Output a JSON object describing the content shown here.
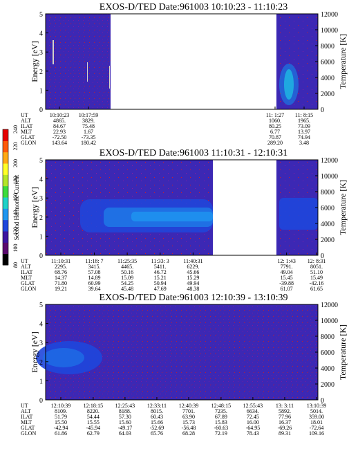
{
  "chart_data": [
    {
      "type": "heatmap",
      "title": "EXOS-D/TED   Date:961003  10:10:23 - 11:10:23",
      "ylabel": "Energy [eV]",
      "ylim": [
        0,
        5
      ],
      "yticks": [
        "0",
        "1",
        "2",
        "3",
        "4",
        "5"
      ],
      "y2label": "Temperature [K]",
      "y2lim": [
        0,
        12000
      ],
      "y2ticks": [
        "0",
        "2000",
        "4000",
        "6000",
        "8000",
        "10000",
        "12000"
      ],
      "grid": false,
      "segments": [
        {
          "start": "10:10:23",
          "end": "10:24:00",
          "band_center_ev": null,
          "intensity": "low"
        },
        {
          "start": "10:24:00",
          "end": "11:01:00",
          "data": "gap"
        },
        {
          "start": "11:01:00",
          "end": "11:10:23",
          "band_center_ev": 1.2,
          "intensity": "high"
        }
      ],
      "table": {
        "row_labels": [
          "UT",
          "ALT",
          "ILAT",
          "MLT",
          "GLAT",
          "GLON"
        ],
        "columns": [
          [
            "10:10:23",
            "4865.",
            "84.67",
            "22.93",
            "-72.50",
            "143.64"
          ],
          [
            "10:17:59",
            "3829.",
            "75.48",
            "1.67",
            "-73.35",
            "180.42"
          ],
          [
            "11: 1:27",
            "1060.",
            "80.25",
            "6.77",
            "70.87",
            "289.20"
          ],
          [
            "11: 8:15",
            "1965.",
            "73.09",
            "13.97",
            "74.94",
            "3.48"
          ]
        ]
      }
    },
    {
      "type": "heatmap",
      "title": "EXOS-D/TED   Date:961003  11:10:31 - 12:10:31",
      "ylabel": "Energy [eV]",
      "ylim": [
        0,
        5
      ],
      "yticks": [
        "0",
        "1",
        "2",
        "3",
        "4",
        "5"
      ],
      "y2label": "Temperature [K]",
      "y2lim": [
        0,
        12000
      ],
      "y2ticks": [
        "0",
        "2000",
        "4000",
        "6000",
        "8000",
        "10000",
        "12000"
      ],
      "grid": false,
      "segments": [
        {
          "start": "11:10:31",
          "end": "11:16:00",
          "band_center_ev": null,
          "intensity": "low"
        },
        {
          "start": "11:16:00",
          "end": "11:43:00",
          "band_center_ev": 1.9,
          "intensity": "high"
        },
        {
          "start": "11:43:00",
          "end": "12: 1:43",
          "data": "gap"
        },
        {
          "start": "12: 1:43",
          "end": "12:10:31",
          "band_center_ev": 2.0,
          "intensity": "medium"
        }
      ],
      "colorbar": {
        "label": "Second Harmonic Current",
        "ticks": [
          "80",
          "100",
          "120",
          "140",
          "160",
          "180",
          "200",
          "220",
          "240"
        ],
        "colors": [
          "#000000",
          "#5a0a6e",
          "#3c14a0",
          "#1e46dc",
          "#1e96f0",
          "#1ed2c8",
          "#3cdc3c",
          "#b4e628",
          "#ffff28",
          "#ffaa14",
          "#ff5a0a",
          "#e60000"
        ]
      },
      "table": {
        "row_labels": [
          "UT",
          "ALT",
          "ILAT",
          "MLT",
          "GLAT",
          "GLON"
        ],
        "columns": [
          [
            "11:10:31",
            "2295.",
            "68.76",
            "14.37",
            "71.80",
            "19.21"
          ],
          [
            "11:18: 7",
            "3415.",
            "57.08",
            "14.89",
            "60.99",
            "39.64"
          ],
          [
            "11:25:35",
            "4465.",
            "50.16",
            "15.09",
            "54.25",
            "45.48"
          ],
          [
            "11:33: 3",
            "5411.",
            "46.72",
            "15.21",
            "50.94",
            "47.69"
          ],
          [
            "11:40:31",
            "6229.",
            "45.66",
            "15.29",
            "49.94",
            "48.38"
          ],
          [
            "12: 1:43",
            "7791.",
            "49.04",
            "15.45",
            "-39.88",
            "61.07"
          ],
          [
            "12: 8:31",
            "8051.",
            "51.10",
            "15.49",
            "-42.16",
            "61.65"
          ]
        ]
      }
    },
    {
      "type": "heatmap",
      "title": "EXOS-D/TED   Date:961003  12:10:39 - 13:10:39",
      "ylabel": "Energy [eV]",
      "ylim": [
        0,
        5
      ],
      "yticks": [
        "0",
        "1",
        "2",
        "3",
        "4",
        "5"
      ],
      "y2label": "Temperature [K]",
      "y2lim": [
        0,
        12000
      ],
      "y2ticks": [
        "0",
        "2000",
        "4000",
        "6000",
        "8000",
        "10000",
        "12000"
      ],
      "grid": false,
      "segments": [
        {
          "start": "12:10:39",
          "end": "12:20:00",
          "band_center_ev": 2.2,
          "intensity": "medium"
        },
        {
          "start": "12:20:00",
          "end": "13:10:39",
          "band_center_ev": null,
          "intensity": "low"
        }
      ],
      "table": {
        "row_labels": [
          "UT",
          "ALT",
          "ILAT",
          "MLT",
          "GLAT",
          "GLON"
        ],
        "columns": [
          [
            "12:10:39",
            "8109.",
            "51.79",
            "15.50",
            "-42.94",
            "61.86"
          ],
          [
            "12:18:15",
            "8220.",
            "54.44",
            "15.55",
            "-45.94",
            "62.79"
          ],
          [
            "12:25:43",
            "8188.",
            "57.30",
            "15.60",
            "-49.17",
            "64.03"
          ],
          [
            "12:33:11",
            "8015.",
            "60.43",
            "15.66",
            "-52.69",
            "65.76"
          ],
          [
            "12:40:39",
            "7701.",
            "63.90",
            "15.73",
            "-56.48",
            "68.28"
          ],
          [
            "12:48:15",
            "7235.",
            "67.89",
            "15.83",
            "-60.63",
            "72.19"
          ],
          [
            "12:55:43",
            "6634.",
            "72.45",
            "16.00",
            "-64.95",
            "78.43"
          ],
          [
            "13: 3:11",
            "5892.",
            "77.96",
            "16.37",
            "-69.26",
            "89.31"
          ],
          [
            "13:10:39",
            "5014.",
            "359.00",
            "18.01",
            "-72.64",
            "109.16"
          ]
        ]
      }
    }
  ]
}
